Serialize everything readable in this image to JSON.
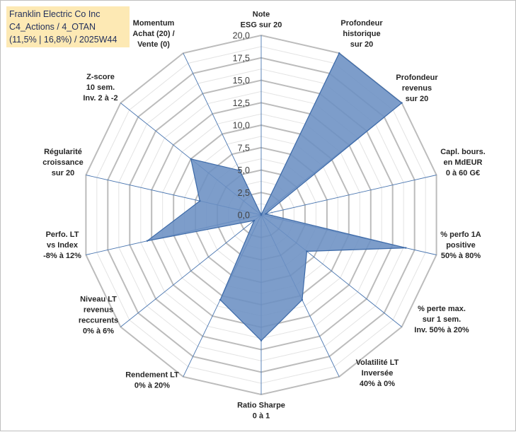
{
  "title_lines": [
    "Franklin Electric Co Inc",
    "C4_Actions / 4_OTAN",
    "(11,5% | 16,8%) / 2025W44"
  ],
  "chart_data": {
    "type": "radar",
    "title": "Franklin Electric Co Inc — C4_Actions / 4_OTAN — (11,5% | 16,8%) / 2025W44",
    "rlim": [
      0,
      20
    ],
    "ticks": [
      "0,0",
      "2,5",
      "5,0",
      "7,5",
      "10,0",
      "12,5",
      "15,0",
      "17,5",
      "20,0"
    ],
    "tick_values": [
      0,
      2.5,
      5,
      7.5,
      10,
      12.5,
      15,
      17.5,
      20
    ],
    "axes": [
      {
        "id": "note-esg",
        "lines": [
          "Note",
          "ESG sur 20"
        ],
        "value": 0
      },
      {
        "id": "profondeur-historique",
        "lines": [
          "Profondeur",
          "historique",
          "sur 20"
        ],
        "value": 20
      },
      {
        "id": "profondeur-revenus",
        "lines": [
          "Profondeur",
          "revenus",
          "sur 20"
        ],
        "value": 20
      },
      {
        "id": "capl-bours",
        "lines": [
          "Capl. bours.",
          "en MdEUR",
          "0 à 60 G€"
        ],
        "value": 0.5
      },
      {
        "id": "perfo-1a",
        "lines": [
          "% perfo 1A",
          "positive",
          "50% à 80%"
        ],
        "value": 16.5
      },
      {
        "id": "perte-max",
        "lines": [
          "% perte max.",
          "sur 1 sem.",
          "Inv. 50% à 20%"
        ],
        "value": 6.5
      },
      {
        "id": "volatilite",
        "lines": [
          "Volatilité LT",
          "Inversée",
          "40% à 0%"
        ],
        "value": 10.5
      },
      {
        "id": "ratio-sharpe",
        "lines": [
          "Ratio Sharpe",
          "0 à 1"
        ],
        "value": 14
      },
      {
        "id": "rendement-lt",
        "lines": [
          "Rendement LT",
          "0% à 20%"
        ],
        "value": 10.5
      },
      {
        "id": "niveau-lt",
        "lines": [
          "Niveau LT",
          "revenus",
          "reccurents",
          "0% à 6%"
        ],
        "value": 1
      },
      {
        "id": "perfo-lt",
        "lines": [
          "Perfo. LT",
          "vs Index",
          "-8% à 12%"
        ],
        "value": 13
      },
      {
        "id": "regularite",
        "lines": [
          "Régularité",
          "croissance",
          "sur 20"
        ],
        "value": 7
      },
      {
        "id": "z-score",
        "lines": [
          "Z-score",
          "10 sem.",
          "Inv. 2 à -2"
        ],
        "value": 10
      },
      {
        "id": "momentum",
        "lines": [
          "Momentum",
          "Achat (20) /",
          "Vente (0)"
        ],
        "value": 5.5
      }
    ],
    "series": [
      {
        "name": "Franklin Electric Co Inc",
        "color": "#4a76b0"
      }
    ],
    "grid": true
  }
}
